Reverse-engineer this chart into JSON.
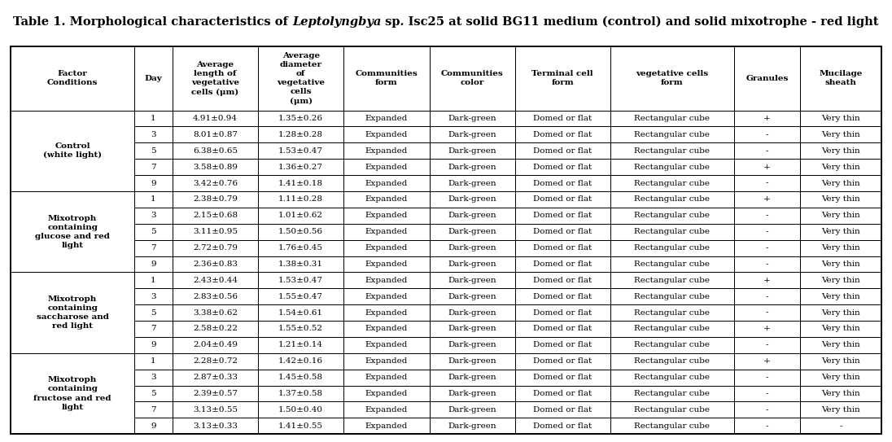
{
  "title_part1": "Table 1. Morphological characteristics of ",
  "title_italic": "Leptolyngbya",
  "title_part2": " sp. Isc25 at solid BG11 medium (control) and solid mixotrophe - red light",
  "col_headers": [
    "Factor\nConditions",
    "Day",
    "Average\nlength of\nvegetative\ncells (μm)",
    "Average\ndiameter\nof\nvegetative\ncells\n(μm)",
    "Communities\nform",
    "Communities\ncolor",
    "Terminal cell\nform",
    "vegetative cells\nform",
    "Granules",
    "Mucilage\nsheath"
  ],
  "col_widths_rel": [
    1.3,
    0.4,
    0.9,
    0.9,
    0.9,
    0.9,
    1.0,
    1.3,
    0.7,
    0.85
  ],
  "row_groups": [
    {
      "label": "Control\n(white light)",
      "rows": [
        [
          "1",
          "4.91±0.94",
          "1.35±0.26",
          "Expanded",
          "Dark-green",
          "Domed or flat",
          "Rectangular cube",
          "+",
          "Very thin"
        ],
        [
          "3",
          "8.01±0.87",
          "1.28±0.28",
          "Expanded",
          "Dark-green",
          "Domed or flat",
          "Rectangular cube",
          "-",
          "Very thin"
        ],
        [
          "5",
          "6.38±0.65",
          "1.53±0.47",
          "Expanded",
          "Dark-green",
          "Domed or flat",
          "Rectangular cube",
          "-",
          "Very thin"
        ],
        [
          "7",
          "3.58±0.89",
          "1.36±0.27",
          "Expanded",
          "Dark-green",
          "Domed or flat",
          "Rectangular cube",
          "+",
          "Very thin"
        ],
        [
          "9",
          "3.42±0.76",
          "1.41±0.18",
          "Expanded",
          "Dark-green",
          "Domed or flat",
          "Rectangular cube",
          "-",
          "Very thin"
        ]
      ]
    },
    {
      "label": "Mixotroph\ncontaining\nglucose and red\nlight",
      "rows": [
        [
          "1",
          "2.38±0.79",
          "1.11±0.28",
          "Expanded",
          "Dark-green",
          "Domed or flat",
          "Rectangular cube",
          "+",
          "Very thin"
        ],
        [
          "3",
          "2.15±0.68",
          "1.01±0.62",
          "Expanded",
          "Dark-green",
          "Domed or flat",
          "Rectangular cube",
          "-",
          "Very thin"
        ],
        [
          "5",
          "3.11±0.95",
          "1.50±0.56",
          "Expanded",
          "Dark-green",
          "Domed or flat",
          "Rectangular cube",
          "-",
          "Very thin"
        ],
        [
          "7",
          "2.72±0.79",
          "1.76±0.45",
          "Expanded",
          "Dark-green",
          "Domed or flat",
          "Rectangular cube",
          "-",
          "Very thin"
        ],
        [
          "9",
          "2.36±0.83",
          "1.38±0.31",
          "Expanded",
          "Dark-green",
          "Domed or flat",
          "Rectangular cube",
          "-",
          "Very thin"
        ]
      ]
    },
    {
      "label": "Mixotroph\ncontaining\nsaccharose and\nred light",
      "rows": [
        [
          "1",
          "2.43±0.44",
          "1.53±0.47",
          "Expanded",
          "Dark-green",
          "Domed or flat",
          "Rectangular cube",
          "+",
          "Very thin"
        ],
        [
          "3",
          "2.83±0.56",
          "1.55±0.47",
          "Expanded",
          "Dark-green",
          "Domed or flat",
          "Rectangular cube",
          "-",
          "Very thin"
        ],
        [
          "5",
          "3.38±0.62",
          "1.54±0.61",
          "Expanded",
          "Dark-green",
          "Domed or flat",
          "Rectangular cube",
          "-",
          "Very thin"
        ],
        [
          "7",
          "2.58±0.22",
          "1.55±0.52",
          "Expanded",
          "Dark-green",
          "Domed or flat",
          "Rectangular cube",
          "+",
          "Very thin"
        ],
        [
          "9",
          "2.04±0.49",
          "1.21±0.14",
          "Expanded",
          "Dark-green",
          "Domed or flat",
          "Rectangular cube",
          "-",
          "Very thin"
        ]
      ]
    },
    {
      "label": "Mixotroph\ncontaining\nfructose and red\nlight",
      "rows": [
        [
          "1",
          "2.28±0.72",
          "1.42±0.16",
          "Expanded",
          "Dark-green",
          "Domed or flat",
          "Rectangular cube",
          "+",
          "Very thin"
        ],
        [
          "3",
          "2.87±0.33",
          "1.45±0.58",
          "Expanded",
          "Dark-green",
          "Domed or flat",
          "Rectangular cube",
          "-",
          "Very thin"
        ],
        [
          "5",
          "2.39±0.57",
          "1.37±0.58",
          "Expanded",
          "Dark-green",
          "Domed or flat",
          "Rectangular cube",
          "-",
          "Very thin"
        ],
        [
          "7",
          "3.13±0.55",
          "1.50±0.40",
          "Expanded",
          "Dark-green",
          "Domed or flat",
          "Rectangular cube",
          "-",
          "Very thin"
        ],
        [
          "9",
          "3.13±0.33",
          "1.41±0.55",
          "Expanded",
          "Dark-green",
          "Domed or flat",
          "Rectangular cube",
          "-",
          "-"
        ]
      ]
    }
  ],
  "bg_color": "#ffffff",
  "text_color": "#000000",
  "data_fontsize": 7.5,
  "header_fontsize": 7.5,
  "title_fontsize": 10.5
}
